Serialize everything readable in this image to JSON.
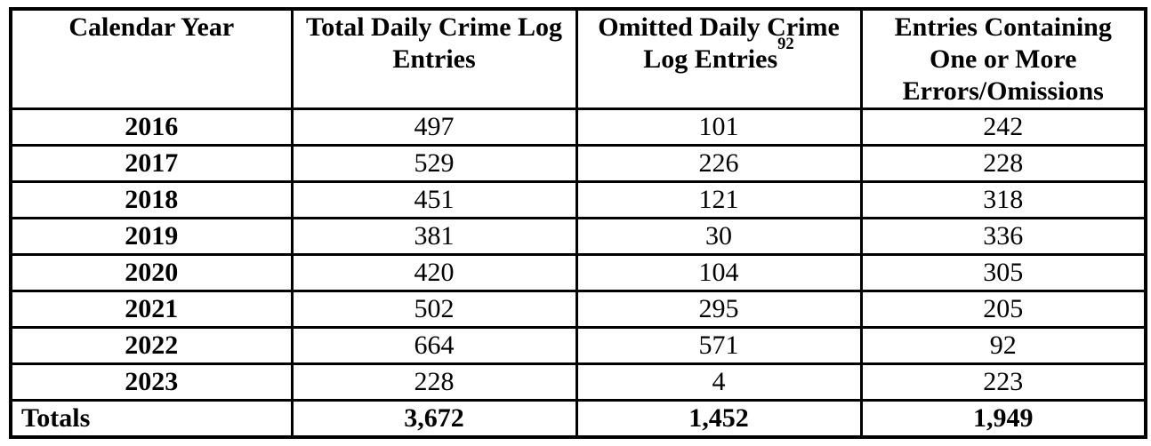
{
  "table": {
    "columns": [
      {
        "label": "Calendar Year"
      },
      {
        "label": "Total Daily Crime Log\nEntries"
      },
      {
        "label": "Omitted Daily Crime\nLog Entries",
        "footnote_ref": "92"
      },
      {
        "label": "Entries Containing\nOne or More\nErrors/Omissions"
      }
    ],
    "rows": [
      {
        "year": "2016",
        "total": "497",
        "omitted": "101",
        "errors": "242"
      },
      {
        "year": "2017",
        "total": "529",
        "omitted": "226",
        "errors": "228"
      },
      {
        "year": "2018",
        "total": "451",
        "omitted": "121",
        "errors": "318"
      },
      {
        "year": "2019",
        "total": "381",
        "omitted": "30",
        "errors": "336"
      },
      {
        "year": "2020",
        "total": "420",
        "omitted": "104",
        "errors": "305"
      },
      {
        "year": "2021",
        "total": "502",
        "omitted": "295",
        "errors": "205"
      },
      {
        "year": "2022",
        "total": "664",
        "omitted": "571",
        "errors": "92"
      },
      {
        "year": "2023",
        "total": "228",
        "omitted": "4",
        "errors": "223"
      }
    ],
    "totals": {
      "label": "Totals",
      "total": "3,672",
      "omitted": "1,452",
      "errors": "1,949"
    }
  },
  "colors": {
    "border": "#000000",
    "text": "#000000",
    "background": "#ffffff"
  }
}
